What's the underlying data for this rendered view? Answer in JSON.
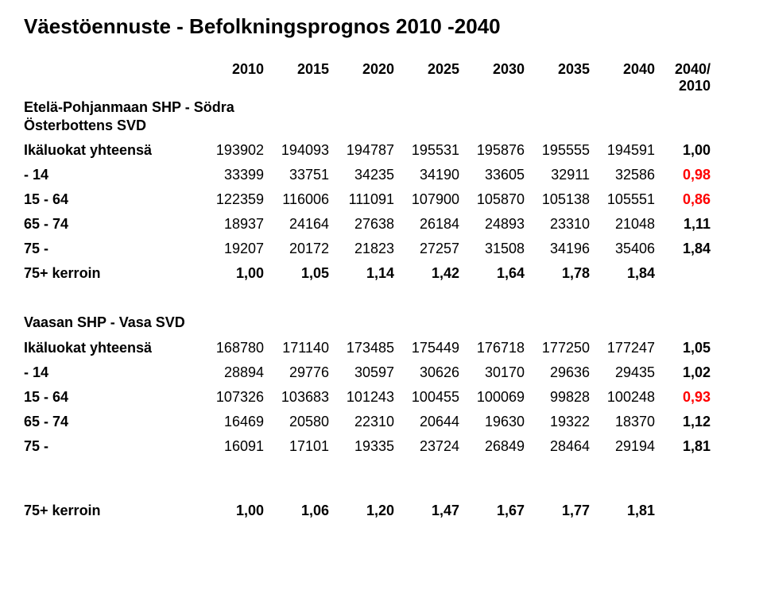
{
  "title": "Väestöennuste  -  Befolkningsprognos 2010 -2040",
  "header": {
    "years": [
      "2010",
      "2015",
      "2020",
      "2025",
      "2030",
      "2035",
      "2040"
    ],
    "lastcol_top": "2040/",
    "lastcol_bottom": "2010"
  },
  "colors": {
    "text": "#000000",
    "highlight": "#ff0000",
    "background": "#ffffff"
  },
  "sections": [
    {
      "name_lines": [
        "Etelä-Pohjanmaan SHP - Södra",
        "Österbottens SVD"
      ],
      "rows": [
        {
          "label": "Ikäluokat yhteensä",
          "vals": [
            "193902",
            "194093",
            "194787",
            "195531",
            "195876",
            "195555",
            "194591"
          ],
          "ratio": "1,00",
          "highlight": false,
          "bold_vals": false
        },
        {
          "label": "- 14",
          "vals": [
            "33399",
            "33751",
            "34235",
            "34190",
            "33605",
            "32911",
            "32586"
          ],
          "ratio": "0,98",
          "highlight": true,
          "bold_vals": false
        },
        {
          "label": "15 - 64",
          "vals": [
            "122359",
            "116006",
            "111091",
            "107900",
            "105870",
            "105138",
            "105551"
          ],
          "ratio": "0,86",
          "highlight": true,
          "bold_vals": false
        },
        {
          "label": "65 - 74",
          "vals": [
            "18937",
            "24164",
            "27638",
            "26184",
            "24893",
            "23310",
            "21048"
          ],
          "ratio": "1,11",
          "highlight": false,
          "bold_vals": false
        },
        {
          "label": "75 -",
          "vals": [
            "19207",
            "20172",
            "21823",
            "27257",
            "31508",
            "34196",
            "35406"
          ],
          "ratio": "1,84",
          "highlight": false,
          "bold_vals": false
        }
      ],
      "kerroin": {
        "label": "75+ kerroin",
        "vals": [
          "1,00",
          "1,05",
          "1,14",
          "1,42",
          "1,64",
          "1,78",
          "1,84"
        ],
        "ratio": ""
      }
    },
    {
      "name_lines": [
        "Vaasan SHP - Vasa SVD"
      ],
      "rows": [
        {
          "label": "Ikäluokat yhteensä",
          "vals": [
            "168780",
            "171140",
            "173485",
            "175449",
            "176718",
            "177250",
            "177247"
          ],
          "ratio": "1,05",
          "highlight": false,
          "bold_vals": false
        },
        {
          "label": "- 14",
          "vals": [
            "28894",
            "29776",
            "30597",
            "30626",
            "30170",
            "29636",
            "29435"
          ],
          "ratio": "1,02",
          "highlight": false,
          "bold_vals": false
        },
        {
          "label": "15 - 64",
          "vals": [
            "107326",
            "103683",
            "101243",
            "100455",
            "100069",
            "99828",
            "100248"
          ],
          "ratio": "0,93",
          "highlight": true,
          "bold_vals": false
        },
        {
          "label": "65 - 74",
          "vals": [
            "16469",
            "20580",
            "22310",
            "20644",
            "19630",
            "19322",
            "18370"
          ],
          "ratio": "1,12",
          "highlight": false,
          "bold_vals": false
        },
        {
          "label": "75 -",
          "vals": [
            "16091",
            "17101",
            "19335",
            "23724",
            "26849",
            "28464",
            "29194"
          ],
          "ratio": "1,81",
          "highlight": false,
          "bold_vals": false
        }
      ],
      "kerroin": {
        "label": "75+ kerroin",
        "vals": [
          "1,00",
          "1,06",
          "1,20",
          "1,47",
          "1,67",
          "1,77",
          "1,81"
        ],
        "ratio": ""
      }
    }
  ]
}
